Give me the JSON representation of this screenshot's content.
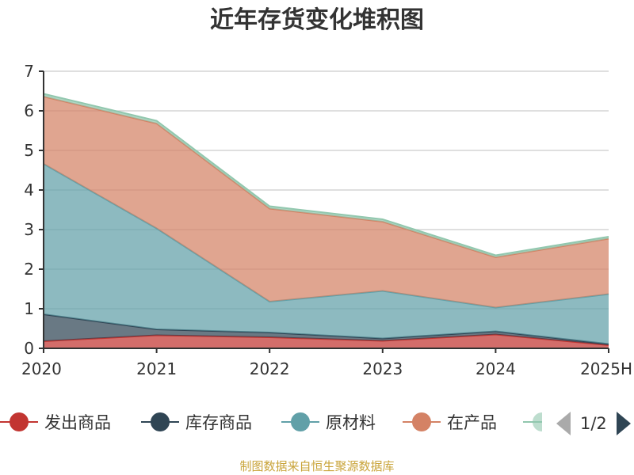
{
  "title": "近年存货变化堆积图",
  "source": "制图数据来自恒生聚源数据库",
  "legend_pager": "1/2",
  "chart_data": {
    "type": "area",
    "stacked": true,
    "title": "近年存货变化堆积图",
    "categories": [
      "2020",
      "2021",
      "2022",
      "2023",
      "2024",
      "2025H"
    ],
    "y_ticks": [
      "0",
      "1",
      "2",
      "3",
      "4",
      "5",
      "6",
      "7"
    ],
    "ylim": [
      0,
      7
    ],
    "grid": true,
    "legend_position": "bottom",
    "series": [
      {
        "name": "发出商品",
        "color": "#c23531",
        "values": [
          0.18,
          0.33,
          0.28,
          0.19,
          0.35,
          0.08
        ]
      },
      {
        "name": "库存商品",
        "color": "#2f4554",
        "values": [
          0.68,
          0.15,
          0.12,
          0.06,
          0.08,
          0.03
        ]
      },
      {
        "name": "原材料",
        "color": "#61a0a8",
        "values": [
          3.8,
          2.55,
          0.78,
          1.2,
          0.6,
          1.26
        ]
      },
      {
        "name": "在产品",
        "color": "#d48265",
        "values": [
          1.7,
          2.65,
          2.35,
          1.75,
          1.27,
          1.4
        ]
      },
      {
        "name": "",
        "color": "#91c7ae",
        "values": [
          0.07,
          0.07,
          0.06,
          0.06,
          0.05,
          0.05
        ]
      }
    ]
  }
}
